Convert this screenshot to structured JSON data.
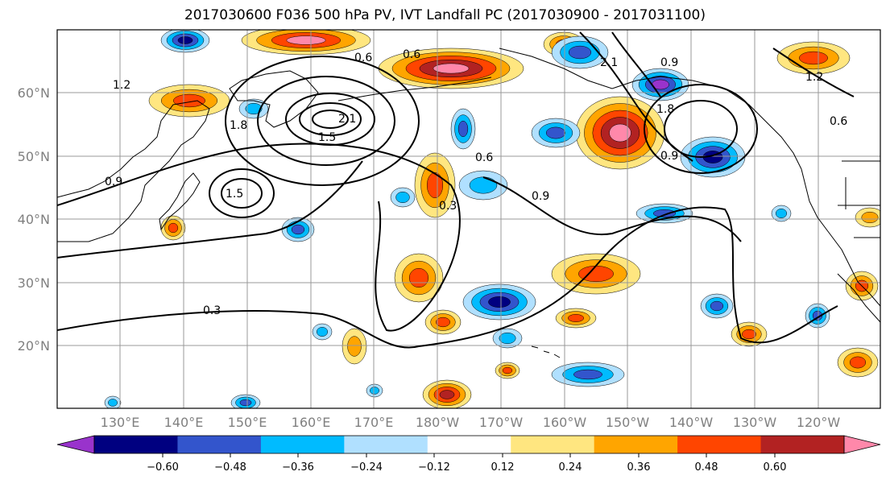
{
  "title": "2017030600 F036 500 hPa PV, IVT Landfall PC (2017030900 - 2017031100)",
  "colors": {
    "levels": [
      "#9933cc",
      "#000080",
      "#3355cc",
      "#00bbff",
      "#b0e0ff",
      "#ffffff",
      "#ffe680",
      "#ffa500",
      "#ff4500",
      "#b22222",
      "#ff88aa"
    ],
    "land_outline": "#000000",
    "grid": "#999999",
    "contour": "#000000"
  },
  "lat_labels": [
    "60°N",
    "50°N",
    "40°N",
    "30°N",
    "20°N"
  ],
  "lon_labels": [
    "130°E",
    "140°E",
    "150°E",
    "160°E",
    "170°E",
    "180°W",
    "170°W",
    "160°W",
    "150°W",
    "140°W",
    "130°W",
    "120°W"
  ],
  "colorbar": {
    "ticks": [
      "−0.60",
      "−0.48",
      "−0.36",
      "−0.24",
      "−0.12",
      "0.12",
      "0.24",
      "0.36",
      "0.48",
      "0.60"
    ],
    "extend": "both"
  },
  "contour_labels": [
    "0.3",
    "0.6",
    "0.9",
    "1.2",
    "1.5",
    "1.8",
    "2.1",
    "0.3",
    "0.6",
    "0.9",
    "1.5",
    "0.9",
    "0.6",
    "0.9",
    "1.2",
    "0.6",
    "1.8",
    "2.1"
  ]
}
